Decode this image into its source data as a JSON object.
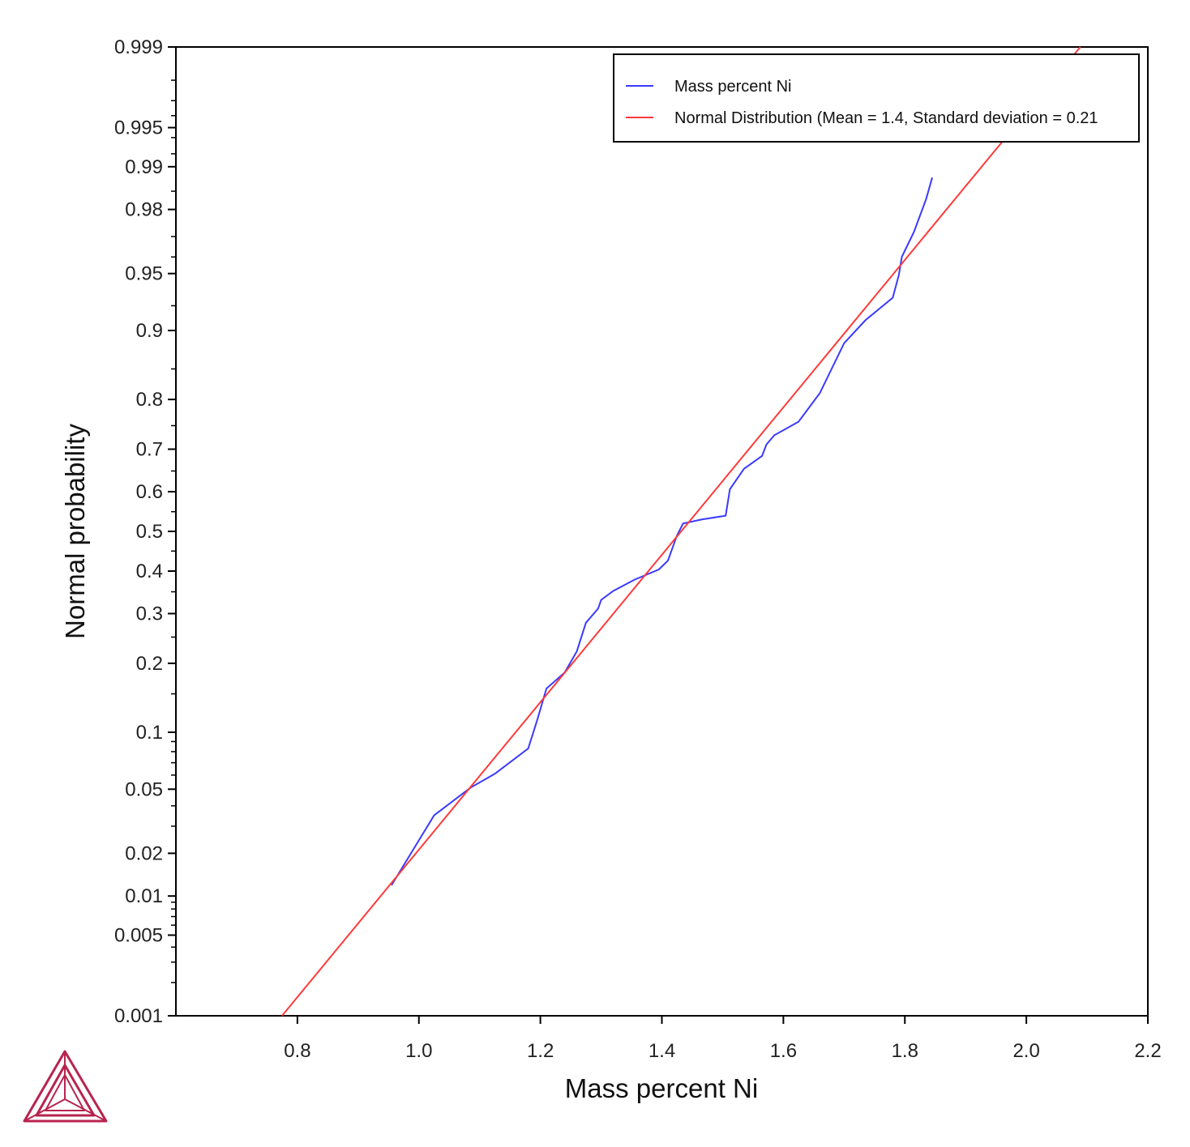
{
  "chart_data": {
    "type": "line",
    "xlabel": "Mass percent Ni",
    "ylabel": "Normal probability",
    "xlim": [
      0.6,
      2.2
    ],
    "ylim": [
      0.001,
      0.999
    ],
    "y_scale": "normal-probability",
    "x_ticks": [
      "0.8",
      "1.0",
      "1.2",
      "1.4",
      "1.6",
      "1.8",
      "2.0",
      "2.2"
    ],
    "y_ticks": [
      "0.001",
      "0.005",
      "0.01",
      "0.02",
      "0.05",
      "0.1",
      "0.2",
      "0.3",
      "0.4",
      "0.5",
      "0.6",
      "0.7",
      "0.8",
      "0.9",
      "0.95",
      "0.98",
      "0.99",
      "0.995",
      "0.999"
    ],
    "grid": false,
    "legend_position": "top-right",
    "series": [
      {
        "name": "Mass percent Ni",
        "color": "#3a3aff",
        "x": [
          0.955,
          1.025,
          1.085,
          1.125,
          1.18,
          1.195,
          1.21,
          1.24,
          1.26,
          1.275,
          1.295,
          1.3,
          1.32,
          1.355,
          1.395,
          1.41,
          1.42,
          1.425,
          1.435,
          1.465,
          1.505,
          1.512,
          1.535,
          1.565,
          1.572,
          1.585,
          1.625,
          1.66,
          1.7,
          1.735,
          1.78,
          1.79,
          1.795,
          1.815,
          1.835,
          1.845
        ],
        "y": [
          0.012,
          0.035,
          0.051,
          0.061,
          0.083,
          0.115,
          0.158,
          0.184,
          0.222,
          0.28,
          0.311,
          0.331,
          0.352,
          0.379,
          0.404,
          0.426,
          0.469,
          0.49,
          0.52,
          0.53,
          0.54,
          0.606,
          0.655,
          0.685,
          0.71,
          0.73,
          0.758,
          0.811,
          0.885,
          0.911,
          0.932,
          0.949,
          0.96,
          0.972,
          0.983,
          0.988
        ]
      },
      {
        "name": "Normal Distribution (Mean = 1.4, Standard deviation = 0.21",
        "color": "#ff3a3a",
        "x": [
          0.7747,
          2.0889
        ],
        "y": [
          0.001,
          0.999
        ]
      }
    ]
  }
}
